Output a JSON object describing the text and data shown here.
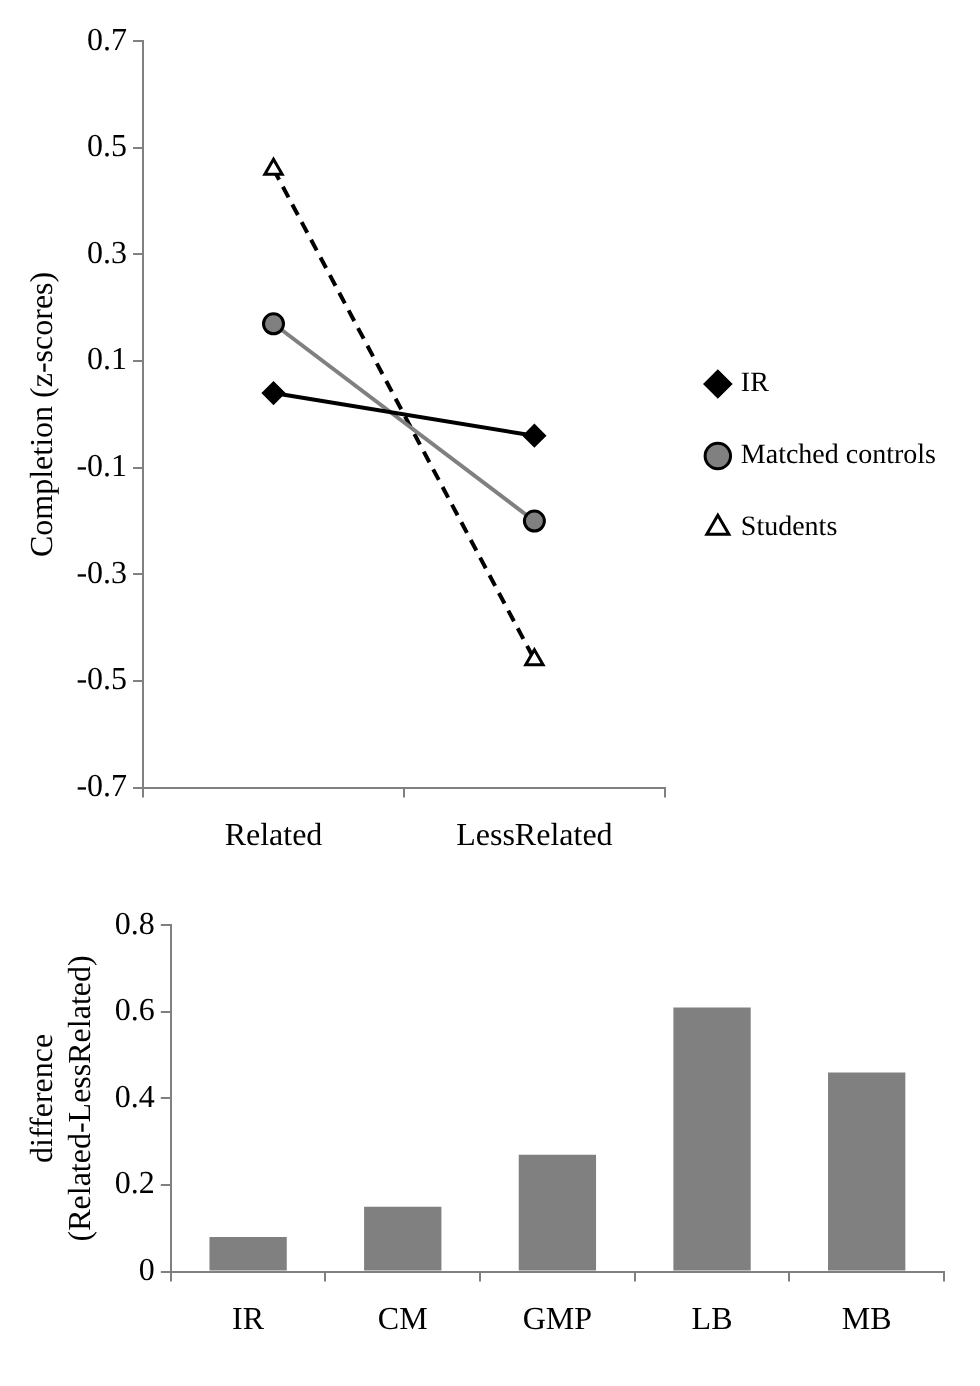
{
  "chart_data": [
    {
      "type": "line",
      "ylabel": "Completion (z-scores)",
      "categories": [
        "Related",
        "LessRelated"
      ],
      "ylim": [
        -0.7,
        0.7
      ],
      "yticks": [
        -0.7,
        -0.5,
        -0.3,
        -0.1,
        0.1,
        0.3,
        0.5,
        0.7
      ],
      "grid": false,
      "legend": "right",
      "series": [
        {
          "name": "IR",
          "color": "#000000",
          "values": [
            0.04,
            -0.04
          ],
          "marker": "diamond",
          "line_style": "solid"
        },
        {
          "name": "Matched controls",
          "color": "#808080",
          "values": [
            0.17,
            -0.2
          ],
          "marker": "circle",
          "line_style": "solid"
        },
        {
          "name": "Students",
          "color": "#000000",
          "values": [
            0.46,
            -0.46
          ],
          "marker": "triangle",
          "line_style": "dashed"
        }
      ]
    },
    {
      "type": "bar",
      "ylabel": "difference (Related-LessRelated)",
      "categories": [
        "IR",
        "CM",
        "GMP",
        "LB",
        "MB"
      ],
      "values": [
        0.08,
        0.15,
        0.27,
        0.61,
        0.46
      ],
      "color": "#808080",
      "ylim": [
        0,
        0.8
      ],
      "yticks": [
        0,
        0.2,
        0.4,
        0.6,
        0.8
      ],
      "grid": false,
      "legend": false
    }
  ]
}
